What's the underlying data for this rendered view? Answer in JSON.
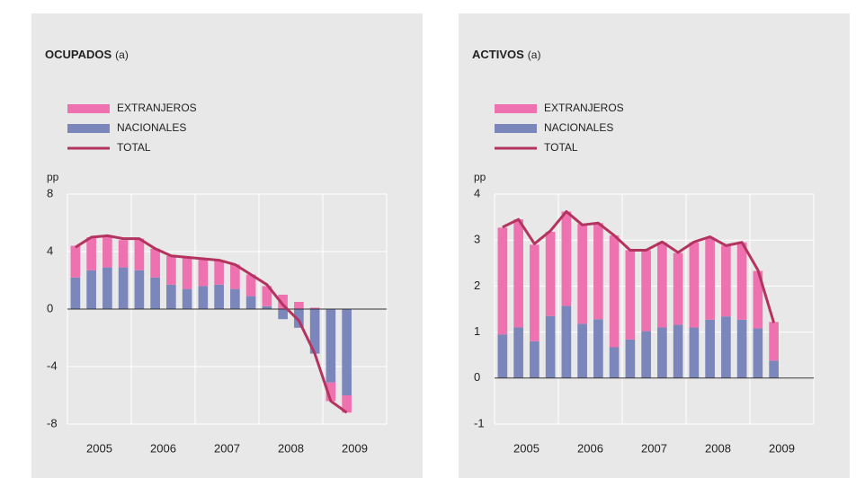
{
  "chart_data": [
    {
      "type": "stacked_bar_line",
      "title": "OCUPADOS",
      "subtitle": "(a)",
      "y_unit": "pp",
      "categories": [
        null,
        null,
        null,
        null,
        null,
        null,
        null,
        null,
        null,
        null,
        null,
        null,
        null,
        null,
        null,
        null,
        null,
        null
      ],
      "year_labels": [
        "2005",
        "2006",
        "2007",
        "2008",
        "2009"
      ],
      "series": [
        {
          "name": "EXTRANJEROS",
          "color": "#ee72b0",
          "kind": "bar",
          "values": [
            2.2,
            2.3,
            2.2,
            1.9,
            2.2,
            2.0,
            2.0,
            2.2,
            1.9,
            1.7,
            1.7,
            1.5,
            1.4,
            1.0,
            0.5,
            0.1,
            -1.3,
            -1.2
          ]
        },
        {
          "name": "NACIONALES",
          "color": "#7b86ba",
          "kind": "bar",
          "values": [
            2.2,
            2.7,
            2.9,
            2.9,
            2.7,
            2.2,
            1.7,
            1.4,
            1.6,
            1.7,
            1.4,
            0.9,
            0.2,
            -0.7,
            -1.3,
            -3.1,
            -5.1,
            -6.0
          ]
        },
        {
          "name": "TOTAL",
          "color": "#b3345f",
          "kind": "line",
          "values": [
            4.3,
            5.0,
            5.1,
            4.9,
            4.9,
            4.2,
            3.7,
            3.6,
            3.5,
            3.4,
            3.1,
            2.4,
            1.7,
            0.3,
            -0.8,
            -3.1,
            -6.4,
            -7.2
          ]
        }
      ],
      "ylim": [
        -8,
        8
      ],
      "yticks": [
        -8,
        -4,
        0,
        4,
        8
      ],
      "grid": true
    },
    {
      "type": "stacked_bar_line",
      "title": "ACTIVOS",
      "subtitle": "(a)",
      "y_unit": "pp",
      "categories": [
        null,
        null,
        null,
        null,
        null,
        null,
        null,
        null,
        null,
        null,
        null,
        null,
        null,
        null,
        null,
        null,
        null,
        null
      ],
      "year_labels": [
        "2005",
        "2006",
        "2007",
        "2008",
        "2009"
      ],
      "series": [
        {
          "name": "EXTRANJEROS",
          "color": "#ee72b0",
          "kind": "bar",
          "values": [
            2.32,
            2.35,
            2.1,
            1.83,
            2.05,
            2.17,
            2.09,
            2.43,
            1.94,
            1.76,
            1.85,
            1.56,
            1.85,
            1.78,
            1.54,
            1.68,
            1.25,
            0.84
          ]
        },
        {
          "name": "NACIONALES",
          "color": "#7b86ba",
          "kind": "bar",
          "values": [
            0.95,
            1.1,
            0.8,
            1.35,
            1.57,
            1.18,
            1.28,
            0.67,
            0.84,
            1.02,
            1.1,
            1.16,
            1.1,
            1.27,
            1.34,
            1.27,
            1.08,
            0.38
          ]
        },
        {
          "name": "TOTAL",
          "color": "#b3345f",
          "kind": "line",
          "values": [
            3.28,
            3.45,
            2.92,
            3.2,
            3.62,
            3.33,
            3.37,
            3.1,
            2.78,
            2.78,
            2.96,
            2.73,
            2.96,
            3.07,
            2.88,
            2.95,
            2.35,
            1.2
          ]
        }
      ],
      "ylim": [
        -1,
        4
      ],
      "yticks": [
        -1,
        0,
        1,
        2,
        3,
        4
      ],
      "grid": true
    }
  ]
}
